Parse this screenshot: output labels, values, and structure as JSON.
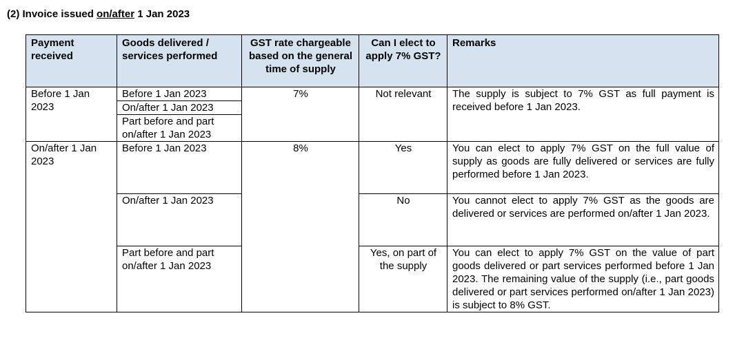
{
  "heading": {
    "prefix": "(2) Invoice issued ",
    "underlined": "on/after",
    "suffix": " 1 Jan 2023"
  },
  "table": {
    "headers": [
      "Payment received",
      "Goods delivered / services performed",
      "GST rate chargeable based on the general time of supply",
      "Can I elect to apply 7% GST?",
      "Remarks"
    ],
    "group1": {
      "payment_received": "Before 1 Jan 2023",
      "goods": [
        "Before 1 Jan 2023",
        "On/after 1 Jan 2023",
        "Part before and part on/after 1 Jan 2023"
      ],
      "rate": "7%",
      "elect": "Not relevant",
      "remarks": "The supply is subject to 7% GST as full payment is received before 1 Jan 2023."
    },
    "group2": {
      "payment_received": "On/after 1 Jan 2023",
      "rate": "8%",
      "rows": [
        {
          "goods": "Before 1 Jan 2023",
          "elect": "Yes",
          "remarks": "You can elect to apply 7% GST on the full value of supply as goods are fully delivered or services are fully performed before 1 Jan 2023."
        },
        {
          "goods": "On/after 1 Jan 2023",
          "elect": "No",
          "remarks": "You cannot elect to apply 7% GST as the goods are delivered or services are performed on/after 1 Jan 2023."
        },
        {
          "goods": "Part before and part on/after 1 Jan 2023",
          "elect": "Yes, on part of the supply",
          "remarks": "You can elect to apply 7% GST on the value of part goods delivered or part services performed before 1 Jan 2023. The remaining value of the supply (i.e., part goods delivered or part services performed on/after 1 Jan 2023) is subject to 8% GST."
        }
      ]
    }
  }
}
